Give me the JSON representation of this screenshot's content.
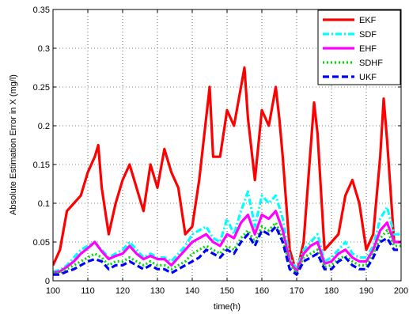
{
  "chart_data": {
    "type": "line",
    "xlabel": "time(h)",
    "ylabel": "Absolute Estimation Error in X (mg/l)",
    "xlim": [
      100,
      200
    ],
    "ylim": [
      0,
      0.35
    ],
    "xticks": [
      "100",
      "110",
      "120",
      "130",
      "140",
      "150",
      "160",
      "170",
      "180",
      "190",
      "200"
    ],
    "yticks": [
      "0",
      "0.05",
      "0.1",
      "0.15",
      "0.2",
      "0.25",
      "0.3",
      "0.35"
    ],
    "grid": "dotted",
    "legend_position": "top-right",
    "series": [
      {
        "name": "EKF",
        "color": "#ff0000",
        "style": "solid",
        "x": [
          100,
          102,
          104,
          106,
          108,
          110,
          112,
          113,
          114,
          116,
          118,
          120,
          122,
          124,
          126,
          128,
          130,
          132,
          134,
          136,
          138,
          140,
          142,
          144,
          145,
          146,
          148,
          150,
          152,
          154,
          155,
          156,
          158,
          160,
          162,
          164,
          165,
          166,
          168,
          170,
          172,
          174,
          175,
          176,
          178,
          180,
          182,
          184,
          186,
          188,
          190,
          192,
          194,
          195,
          196,
          198,
          200
        ],
        "y": [
          0.02,
          0.04,
          0.09,
          0.1,
          0.11,
          0.14,
          0.16,
          0.175,
          0.12,
          0.06,
          0.1,
          0.13,
          0.15,
          0.12,
          0.09,
          0.15,
          0.12,
          0.17,
          0.14,
          0.12,
          0.06,
          0.07,
          0.13,
          0.21,
          0.25,
          0.16,
          0.16,
          0.22,
          0.2,
          0.25,
          0.275,
          0.21,
          0.13,
          0.22,
          0.2,
          0.25,
          0.21,
          0.16,
          0.04,
          0.01,
          0.05,
          0.17,
          0.23,
          0.19,
          0.04,
          0.05,
          0.06,
          0.11,
          0.13,
          0.1,
          0.04,
          0.06,
          0.16,
          0.235,
          0.18,
          0.05,
          0.05
        ]
      },
      {
        "name": "SDF",
        "color": "#00ffff",
        "style": "dashdot",
        "x": [
          100,
          102,
          104,
          106,
          108,
          110,
          112,
          114,
          116,
          118,
          120,
          122,
          124,
          126,
          128,
          130,
          132,
          134,
          136,
          138,
          140,
          142,
          144,
          146,
          148,
          150,
          152,
          154,
          156,
          158,
          160,
          162,
          164,
          166,
          168,
          170,
          172,
          174,
          176,
          178,
          180,
          182,
          184,
          186,
          188,
          190,
          192,
          194,
          196,
          198,
          200
        ],
        "y": [
          0.012,
          0.014,
          0.02,
          0.03,
          0.04,
          0.045,
          0.05,
          0.04,
          0.03,
          0.035,
          0.04,
          0.05,
          0.04,
          0.03,
          0.035,
          0.03,
          0.03,
          0.025,
          0.035,
          0.045,
          0.06,
          0.065,
          0.07,
          0.055,
          0.05,
          0.08,
          0.06,
          0.09,
          0.115,
          0.07,
          0.11,
          0.1,
          0.11,
          0.08,
          0.03,
          0.015,
          0.04,
          0.05,
          0.06,
          0.025,
          0.03,
          0.04,
          0.05,
          0.035,
          0.03,
          0.03,
          0.045,
          0.08,
          0.095,
          0.06,
          0.06
        ]
      },
      {
        "name": "EHF",
        "color": "#ff00ff",
        "style": "solid",
        "x": [
          100,
          102,
          104,
          106,
          108,
          110,
          112,
          114,
          116,
          118,
          120,
          122,
          124,
          126,
          128,
          130,
          132,
          134,
          136,
          138,
          140,
          142,
          144,
          146,
          148,
          150,
          152,
          154,
          156,
          158,
          160,
          162,
          164,
          166,
          168,
          170,
          172,
          174,
          176,
          178,
          180,
          182,
          184,
          186,
          188,
          190,
          192,
          194,
          196,
          198,
          200
        ],
        "y": [
          0.01,
          0.012,
          0.018,
          0.025,
          0.035,
          0.042,
          0.05,
          0.038,
          0.028,
          0.032,
          0.035,
          0.045,
          0.035,
          0.028,
          0.032,
          0.028,
          0.028,
          0.02,
          0.03,
          0.04,
          0.05,
          0.055,
          0.06,
          0.05,
          0.045,
          0.06,
          0.055,
          0.075,
          0.085,
          0.06,
          0.085,
          0.08,
          0.09,
          0.065,
          0.025,
          0.012,
          0.035,
          0.045,
          0.05,
          0.022,
          0.025,
          0.035,
          0.04,
          0.03,
          0.025,
          0.025,
          0.04,
          0.065,
          0.075,
          0.05,
          0.05
        ]
      },
      {
        "name": "SDHF",
        "color": "#00dd00",
        "style": "dotted",
        "x": [
          100,
          102,
          104,
          106,
          108,
          110,
          112,
          114,
          116,
          118,
          120,
          122,
          124,
          126,
          128,
          130,
          132,
          134,
          136,
          138,
          140,
          142,
          144,
          146,
          148,
          150,
          152,
          154,
          156,
          158,
          160,
          162,
          164,
          166,
          168,
          170,
          172,
          174,
          176,
          178,
          180,
          182,
          184,
          186,
          188,
          190,
          192,
          194,
          196,
          198,
          200
        ],
        "y": [
          0.01,
          0.01,
          0.015,
          0.02,
          0.025,
          0.03,
          0.035,
          0.03,
          0.02,
          0.025,
          0.025,
          0.03,
          0.025,
          0.02,
          0.025,
          0.02,
          0.02,
          0.015,
          0.02,
          0.025,
          0.035,
          0.04,
          0.045,
          0.04,
          0.035,
          0.045,
          0.04,
          0.055,
          0.065,
          0.05,
          0.07,
          0.065,
          0.075,
          0.055,
          0.02,
          0.01,
          0.03,
          0.035,
          0.04,
          0.018,
          0.02,
          0.028,
          0.032,
          0.025,
          0.02,
          0.02,
          0.035,
          0.055,
          0.065,
          0.045,
          0.045
        ]
      },
      {
        "name": "UKF",
        "color": "#0000ff",
        "style": "dashed",
        "x": [
          100,
          102,
          104,
          106,
          108,
          110,
          112,
          114,
          116,
          118,
          120,
          122,
          124,
          126,
          128,
          130,
          132,
          134,
          136,
          138,
          140,
          142,
          144,
          146,
          148,
          150,
          152,
          154,
          156,
          158,
          160,
          162,
          164,
          166,
          168,
          170,
          172,
          174,
          176,
          178,
          180,
          182,
          184,
          186,
          188,
          190,
          192,
          194,
          196,
          198,
          200
        ],
        "y": [
          0.008,
          0.008,
          0.012,
          0.015,
          0.02,
          0.025,
          0.028,
          0.025,
          0.015,
          0.02,
          0.02,
          0.025,
          0.02,
          0.015,
          0.02,
          0.015,
          0.015,
          0.01,
          0.015,
          0.02,
          0.025,
          0.03,
          0.04,
          0.035,
          0.03,
          0.04,
          0.035,
          0.05,
          0.06,
          0.045,
          0.065,
          0.06,
          0.07,
          0.05,
          0.015,
          0.008,
          0.025,
          0.03,
          0.035,
          0.015,
          0.015,
          0.025,
          0.03,
          0.02,
          0.015,
          0.015,
          0.03,
          0.05,
          0.055,
          0.04,
          0.04
        ]
      }
    ]
  }
}
